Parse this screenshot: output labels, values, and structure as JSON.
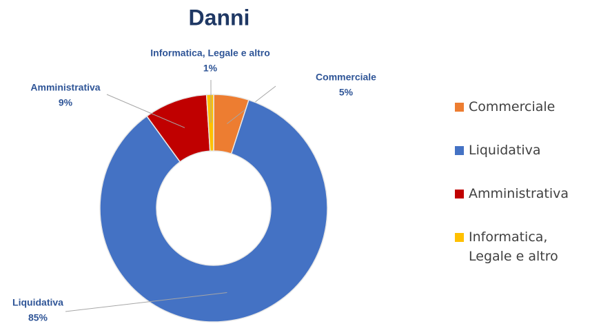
{
  "chart_data": {
    "type": "donut",
    "title": "Danni",
    "categories": [
      "Commerciale",
      "Liquidativa",
      "Amministrativa",
      "Informatica, Legale e altro"
    ],
    "values": [
      5,
      85,
      9,
      1
    ],
    "value_labels": [
      "5%",
      "85%",
      "9%",
      "1%"
    ],
    "colors": [
      "#ed7d31",
      "#4472c4",
      "#c00000",
      "#ffc000"
    ],
    "legend": "right"
  }
}
